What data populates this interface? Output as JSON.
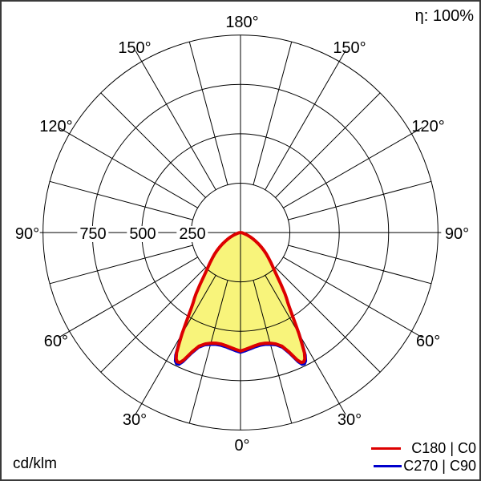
{
  "header": {
    "eta_label": "η: 100%"
  },
  "footer": {
    "unit_label": "cd/klm"
  },
  "legend": [
    {
      "label": "C180 | C0",
      "color": "#dd0000"
    },
    {
      "label": "C270 | C90",
      "color": "#0000cc"
    }
  ],
  "chart_data": {
    "type": "polar_photometric_curve",
    "unit": "cd/klm",
    "efficiency_percent": 100,
    "r_axis_values": [
      250,
      500,
      750,
      1000
    ],
    "r_axis_shown_labels": [
      "750",
      "500",
      "250"
    ],
    "r_max": 1000,
    "angle_grid_step_deg": 15,
    "angle_labels": [
      {
        "text": "180°",
        "dir": 0
      },
      {
        "text": "150°",
        "dir": -30
      },
      {
        "text": "150°",
        "dir": 30
      },
      {
        "text": "120°",
        "dir": -60
      },
      {
        "text": "120°",
        "dir": 60
      },
      {
        "text": "90°",
        "dir": -90
      },
      {
        "text": "90°",
        "dir": 90
      },
      {
        "text": "60°",
        "dir": -120
      },
      {
        "text": "60°",
        "dir": 120
      },
      {
        "text": "30°",
        "dir": -150
      },
      {
        "text": "30°",
        "dir": 150
      },
      {
        "text": "0°",
        "dir": 180
      }
    ],
    "gamma_deg": [
      0,
      2.5,
      5,
      7.5,
      10,
      12.5,
      15,
      17.5,
      20,
      22,
      24,
      25,
      26,
      27,
      28,
      29,
      30,
      31,
      32,
      33,
      34,
      35,
      36,
      38,
      40,
      42.5,
      45,
      47.5,
      50,
      52.5,
      55,
      57.5,
      60,
      62.5,
      65,
      67.5,
      70,
      75,
      80,
      85,
      90
    ],
    "series": [
      {
        "name": "C270 | C90",
        "color": "#0000cc",
        "symmetric": true,
        "intensity_cd_per_klm": [
          608,
          600,
          592,
          585,
          581,
          582,
          588,
          598,
          620,
          660,
          718,
          738,
          741,
          730,
          702,
          650,
          600,
          546,
          500,
          462,
          431,
          409,
          386,
          334,
          290,
          250,
          222,
          196,
          174,
          152,
          131,
          111,
          93,
          76,
          60,
          46,
          35,
          18,
          9,
          3,
          0
        ]
      },
      {
        "name": "C180 | C0",
        "color": "#dd0000",
        "symmetric": true,
        "intensity_cd_per_klm": [
          600,
          592,
          584,
          577,
          573,
          574,
          580,
          591,
          612,
          650,
          706,
          726,
          729,
          718,
          690,
          640,
          592,
          540,
          495,
          458,
          428,
          406,
          383,
          332,
          288,
          248,
          220,
          194,
          172,
          150,
          129,
          109,
          91,
          74,
          59,
          45,
          34,
          17,
          8,
          3,
          0
        ]
      }
    ],
    "fill_color": "#f8f47b",
    "legend_position": "bottom-right"
  }
}
